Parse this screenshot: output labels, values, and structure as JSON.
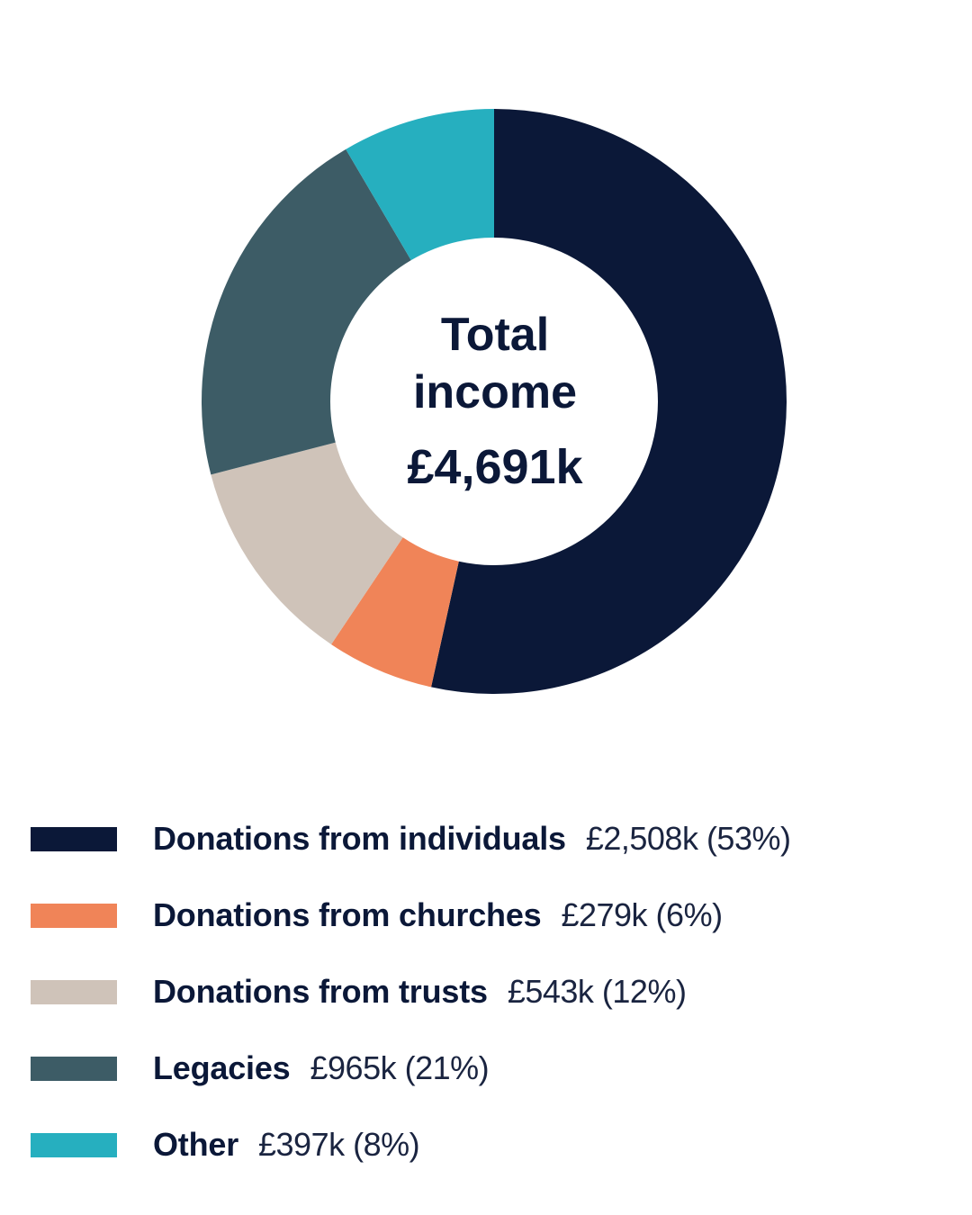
{
  "chart_data": {
    "type": "pie",
    "donut": true,
    "center_text": [
      "Total",
      "income",
      "£4,691k"
    ],
    "title": "",
    "slices": [
      {
        "label": "Donations from individuals",
        "value": 2508,
        "value_text": "£2,508k (53%)",
        "percent": 53,
        "color": "#0b1838"
      },
      {
        "label": "Donations from churches",
        "value": 279,
        "value_text": "£279k (6%)",
        "percent": 6,
        "color": "#f08458"
      },
      {
        "label": "Donations from trusts",
        "value": 543,
        "value_text": "£543k (12%)",
        "percent": 12,
        "color": "#cfc3b9"
      },
      {
        "label": "Legacies",
        "value": 965,
        "value_text": "£965k (21%)",
        "percent": 21,
        "color": "#3d5c66"
      },
      {
        "label": "Other",
        "value": 397,
        "value_text": "£397k (8%)",
        "percent": 8,
        "color": "#26afbf"
      }
    ],
    "legend": "bottom"
  }
}
